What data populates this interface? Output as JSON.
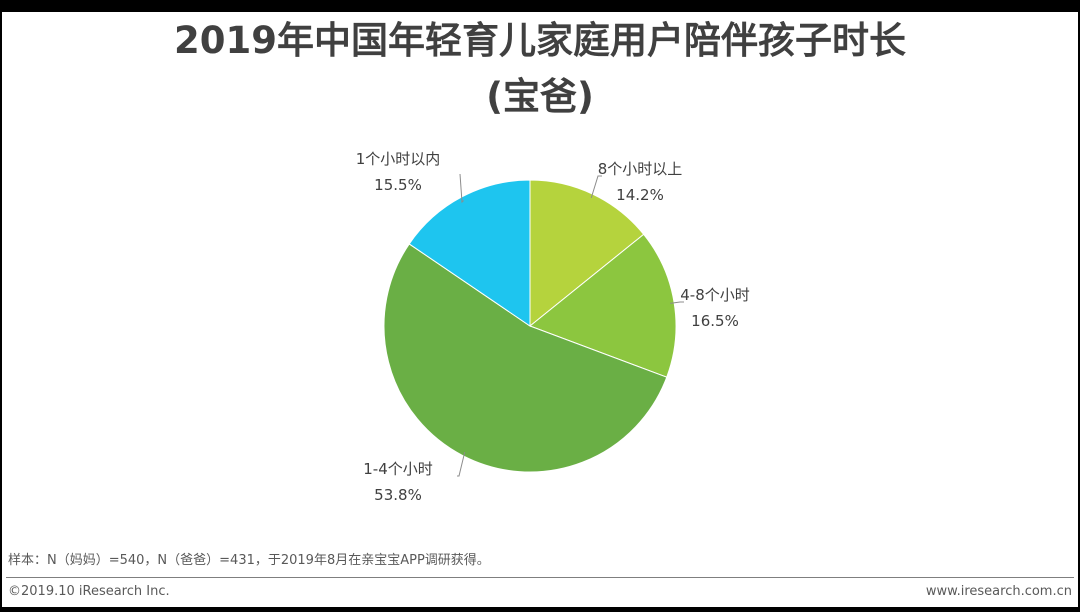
{
  "title_line1": "2019年中国年轻育儿家庭用户陪伴孩子时长",
  "title_line2": "(宝爸)",
  "chart_data": {
    "type": "pie",
    "title": "2019年中国年轻育儿家庭用户陪伴孩子时长(宝爸)",
    "categories": [
      "8个小时以上",
      "4-8个小时",
      "1-4个小时",
      "1个小时以内"
    ],
    "values": [
      14.2,
      16.5,
      53.8,
      15.5
    ],
    "value_labels": [
      "14.2%",
      "16.5%",
      "53.8%",
      "15.5%"
    ],
    "colors": [
      "#b5d33d",
      "#8cc63f",
      "#6aaf45",
      "#1ec5ef"
    ],
    "start": "12 o'clock, clockwise",
    "legend": "none (outside labels with leader lines)"
  },
  "footnote": "样本：N（妈妈）=540，N（爸爸）=431，于2019年8月在亲宝宝APP调研获得。",
  "copyright": "©2019.10 iResearch Inc.",
  "website": "www.iresearch.com.cn"
}
